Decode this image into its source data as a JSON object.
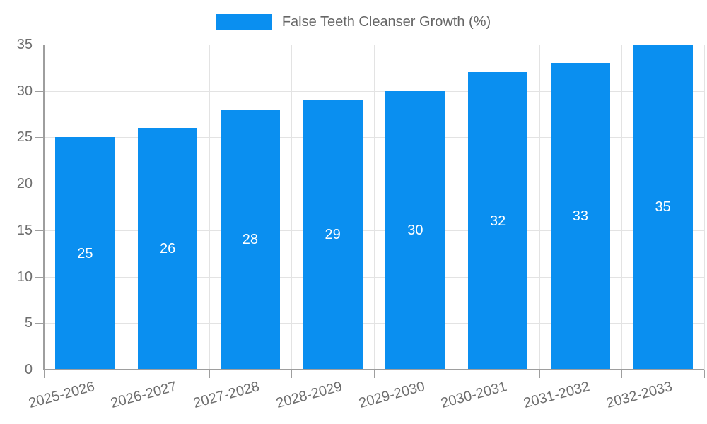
{
  "legend": {
    "label": "False Teeth Cleanser Growth (%)"
  },
  "colors": {
    "bar": "#0a8ff0",
    "grid": "#e3e3e3",
    "axis": "#9e9e9e",
    "tick_text": "#6e6e6e",
    "legend_text": "#666666",
    "value_label": "#ffffff",
    "background": "#ffffff"
  },
  "chart_data": {
    "type": "bar",
    "title": "False Teeth Cleanser Growth (%)",
    "categories": [
      "2025-2026",
      "2026-2027",
      "2027-2028",
      "2028-2029",
      "2029-2030",
      "2030-2031",
      "2031-2032",
      "2032-2033"
    ],
    "series": [
      {
        "name": "False Teeth Cleanser Growth (%)",
        "values": [
          25,
          26,
          28,
          29,
          30,
          32,
          33,
          35
        ]
      }
    ],
    "values": [
      25,
      26,
      28,
      29,
      30,
      32,
      33,
      35
    ],
    "bar_value_labels": [
      "25",
      "26",
      "28",
      "29",
      "30",
      "32",
      "33",
      "35"
    ],
    "xlabel": "",
    "ylabel": "",
    "ylim": [
      0,
      35
    ],
    "yticks": [
      0,
      5,
      10,
      15,
      20,
      25,
      30,
      35
    ],
    "grid": true,
    "legend_position": "top",
    "value_labels_inside_bars": true,
    "x_tick_rotation_deg": -15
  }
}
